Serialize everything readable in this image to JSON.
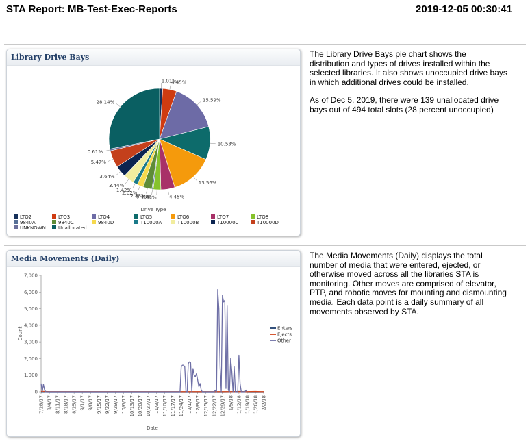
{
  "header": {
    "title": "STA Report: MB-Test-Exec-Reports",
    "timestamp": "2019-12-05 00:30:41"
  },
  "drive_bays": {
    "panel_title": "Library Drive Bays",
    "description": [
      "The Library Drive Bays pie chart shows the distribution and types of drives installed within the selected libraries. It also shows unoccupied drive bays in which additional drives could be installed.",
      "As of Dec 5, 2019, there were 139 unallocated drive bays out of 494 total slots (28 percent unoccupied)"
    ]
  },
  "media_movements": {
    "panel_title": "Media Movements (Daily)",
    "description": "The Media Movements (Daily) displays the total number of media that were entered, ejected, or otherwise moved across all the libraries STA is monitoring. Other moves are comprised of elevator, PTP, and robotic moves for mounting and dismounting media. Each data point is a daily summary of all movements observed by STA."
  },
  "chart_data": [
    {
      "type": "pie",
      "legend_title": "Drive Type",
      "legend_position": "bottom",
      "slices": [
        {
          "name": "LTO2",
          "label": "1.01%",
          "value": 1.01,
          "color": "#15305a"
        },
        {
          "name": "LTO3",
          "label": "4.45%",
          "value": 4.45,
          "color": "#cf3b11"
        },
        {
          "name": "LTO4",
          "label": "15.59%",
          "value": 15.59,
          "color": "#6d6ba6"
        },
        {
          "name": "LTO5",
          "label": "10.53%",
          "value": 10.53,
          "color": "#0d6b6b"
        },
        {
          "name": "LTO6",
          "label": "13.56%",
          "value": 13.56,
          "color": "#f59a0c"
        },
        {
          "name": "LTO7",
          "label": "4.45%",
          "value": 4.45,
          "color": "#a83168"
        },
        {
          "name": "LTO8",
          "label": "2.43%",
          "value": 2.43,
          "color": "#86c22c"
        },
        {
          "name": "9840A",
          "label": "0.40%",
          "value": 0.4,
          "color": "#566f96"
        },
        {
          "name": "9840C",
          "label": "2.83%",
          "value": 2.83,
          "color": "#5e8c37"
        },
        {
          "name": "9840D",
          "label": "2.02%",
          "value": 2.02,
          "color": "#f6d94d"
        },
        {
          "name": "T10000A",
          "label": "1.42%",
          "value": 1.42,
          "color": "#1b7a8a"
        },
        {
          "name": "T10000B",
          "label": "3.44%",
          "value": 3.44,
          "color": "#f2ed9e"
        },
        {
          "name": "T10000C",
          "label": "3.64%",
          "value": 3.64,
          "color": "#0b2450"
        },
        {
          "name": "T10000D",
          "label": "5.47%",
          "value": 5.47,
          "color": "#c4401c"
        },
        {
          "name": "UNKNOWN",
          "label": "0.61%",
          "value": 0.61,
          "color": "#6b6f9b"
        },
        {
          "name": "Unallocated",
          "label": "28.14%",
          "value": 28.14,
          "color": "#0a5f62"
        }
      ]
    },
    {
      "type": "line",
      "xlabel": "Date",
      "ylabel": "Count",
      "ylim": [
        0,
        7000
      ],
      "yticks": [
        0,
        1000,
        2000,
        3000,
        4000,
        5000,
        6000,
        7000
      ],
      "ytick_labels": [
        "0",
        "1,000",
        "2,000",
        "3,000",
        "4,000",
        "5,000",
        "6,000",
        "7,000"
      ],
      "xticks": [
        "7/28/17",
        "8/4/17",
        "8/11/17",
        "8/18/17",
        "8/25/17",
        "9/1/17",
        "9/8/17",
        "9/15/17",
        "9/22/17",
        "9/29/17",
        "10/6/17",
        "10/13/17",
        "10/20/17",
        "10/27/17",
        "11/3/17",
        "11/10/17",
        "11/17/17",
        "11/24/17",
        "12/1/17",
        "12/8/17",
        "12/15/17",
        "12/22/17",
        "12/29/17",
        "1/5/18",
        "1/12/18",
        "1/19/18",
        "1/26/18",
        "2/2/18"
      ],
      "legend_position": "right",
      "series": [
        {
          "name": "Enters",
          "color": "#1d3f6e",
          "points": [
            [
              0,
              0
            ],
            [
              1,
              10
            ],
            [
              7,
              0
            ],
            [
              14,
              0
            ],
            [
              21,
              0
            ],
            [
              28,
              0
            ],
            [
              35,
              0
            ],
            [
              42,
              0
            ],
            [
              49,
              0
            ],
            [
              56,
              0
            ],
            [
              63,
              0
            ],
            [
              70,
              0
            ],
            [
              77,
              0
            ],
            [
              84,
              0
            ],
            [
              91,
              0
            ],
            [
              98,
              0
            ],
            [
              105,
              0
            ],
            [
              112,
              0
            ],
            [
              119,
              0
            ],
            [
              126,
              0
            ],
            [
              133,
              0
            ],
            [
              140,
              0
            ],
            [
              147,
              0
            ],
            [
              154,
              0
            ],
            [
              161,
              5
            ],
            [
              168,
              20
            ],
            [
              175,
              0
            ],
            [
              182,
              0
            ],
            [
              189,
              0
            ]
          ]
        },
        {
          "name": "Ejects",
          "color": "#d2451e",
          "points": [
            [
              0,
              30
            ],
            [
              7,
              10
            ],
            [
              14,
              10
            ],
            [
              21,
              10
            ],
            [
              28,
              10
            ],
            [
              35,
              10
            ],
            [
              42,
              10
            ],
            [
              49,
              10
            ],
            [
              56,
              10
            ],
            [
              63,
              10
            ],
            [
              70,
              10
            ],
            [
              77,
              10
            ],
            [
              84,
              10
            ],
            [
              91,
              10
            ],
            [
              98,
              10
            ],
            [
              105,
              10
            ],
            [
              112,
              10
            ],
            [
              119,
              10
            ],
            [
              126,
              10
            ],
            [
              133,
              10
            ],
            [
              140,
              10
            ],
            [
              147,
              10
            ],
            [
              154,
              10
            ],
            [
              161,
              10
            ],
            [
              168,
              10
            ],
            [
              175,
              10
            ],
            [
              182,
              20
            ],
            [
              186,
              10
            ],
            [
              189,
              10
            ]
          ]
        },
        {
          "name": "Other",
          "color": "#6e6fa6",
          "points": [
            [
              0,
              500
            ],
            [
              1,
              10
            ],
            [
              2,
              450
            ],
            [
              3,
              100
            ],
            [
              4,
              0
            ],
            [
              10,
              0
            ],
            [
              20,
              0
            ],
            [
              40,
              0
            ],
            [
              60,
              0
            ],
            [
              80,
              0
            ],
            [
              100,
              0
            ],
            [
              115,
              0
            ],
            [
              118,
              0
            ],
            [
              119,
              1500
            ],
            [
              120,
              1600
            ],
            [
              121,
              1600
            ],
            [
              122,
              1500
            ],
            [
              123,
              0
            ],
            [
              124,
              0
            ],
            [
              125,
              1700
            ],
            [
              126,
              1800
            ],
            [
              127,
              1750
            ],
            [
              128,
              0
            ],
            [
              129,
              1400
            ],
            [
              130,
              1000
            ],
            [
              131,
              900
            ],
            [
              132,
              1100
            ],
            [
              133,
              700
            ],
            [
              134,
              300
            ],
            [
              135,
              500
            ],
            [
              136,
              100
            ],
            [
              137,
              0
            ],
            [
              140,
              0
            ],
            [
              147,
              0
            ],
            [
              148,
              100
            ],
            [
              149,
              0
            ],
            [
              150,
              6150
            ],
            [
              151,
              5000
            ],
            [
              152,
              1500
            ],
            [
              153,
              0
            ],
            [
              154,
              5800
            ],
            [
              155,
              5400
            ],
            [
              156,
              5500
            ],
            [
              157,
              200
            ],
            [
              158,
              5200
            ],
            [
              159,
              100
            ],
            [
              160,
              0
            ],
            [
              161,
              2000
            ],
            [
              162,
              1200
            ],
            [
              163,
              0
            ],
            [
              164,
              1500
            ],
            [
              165,
              0
            ],
            [
              166,
              0
            ],
            [
              167,
              0
            ],
            [
              168,
              2200
            ],
            [
              169,
              500
            ],
            [
              170,
              0
            ],
            [
              171,
              0
            ],
            [
              172,
              0
            ],
            [
              173,
              0
            ],
            [
              174,
              100
            ],
            [
              175,
              0
            ]
          ]
        }
      ]
    }
  ]
}
